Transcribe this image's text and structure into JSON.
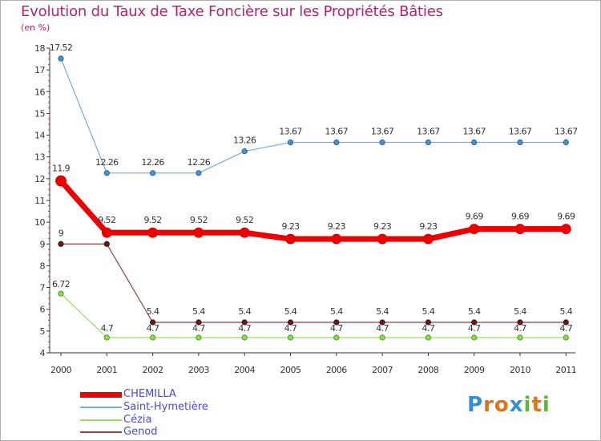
{
  "header": {
    "title": "Evolution du Taux de Taxe Foncière sur les Propriétés Bâties",
    "subtitle": "(en %)"
  },
  "chart_data": {
    "type": "line",
    "title": "Evolution du Taux de Taxe Foncière sur les Propriétés Bâties",
    "ylabel": "(en %)",
    "xlabel": "",
    "ylim": [
      4,
      18
    ],
    "yticks": [
      "4",
      "5",
      "6",
      "7",
      "8",
      "9",
      "10",
      "11",
      "12",
      "13",
      "14",
      "15",
      "16",
      "17",
      "18"
    ],
    "categories": [
      "2000",
      "2001",
      "2002",
      "2003",
      "2004",
      "2005",
      "2006",
      "2007",
      "2008",
      "2009",
      "2010",
      "2011"
    ],
    "series": [
      {
        "name": "CHEMILLA",
        "color": "#ee0000",
        "values": [
          11.9,
          9.52,
          9.52,
          9.52,
          9.52,
          9.23,
          9.23,
          9.23,
          9.23,
          9.69,
          9.69,
          9.69
        ],
        "labels": [
          "11.9",
          "9.52",
          "9.52",
          "9.52",
          "9.52",
          "9.23",
          "9.23",
          "9.23",
          "9.23",
          "9.69",
          "9.69",
          "9.69"
        ]
      },
      {
        "name": "Saint-Hymetière",
        "color": "#77aadd",
        "values": [
          17.52,
          12.26,
          12.26,
          12.26,
          13.26,
          13.67,
          13.67,
          13.67,
          13.67,
          13.67,
          13.67,
          13.67
        ],
        "labels": [
          "17.52",
          "12.26",
          "12.26",
          "12.26",
          "13.26",
          "13.67",
          "13.67",
          "13.67",
          "13.67",
          "13.67",
          "13.67",
          "13.67"
        ]
      },
      {
        "name": "Cézia",
        "color": "#99dd66",
        "values": [
          6.72,
          4.7,
          4.7,
          4.7,
          4.7,
          4.7,
          4.7,
          4.7,
          4.7,
          4.7,
          4.7,
          4.7
        ],
        "labels": [
          "6.72",
          "4.7",
          "4.7",
          "4.7",
          "4.7",
          "4.7",
          "4.7",
          "4.7",
          "4.7",
          "4.7",
          "4.7",
          "4.7"
        ]
      },
      {
        "name": "Genod",
        "color": "#884444",
        "values": [
          9,
          9,
          5.4,
          5.4,
          5.4,
          5.4,
          5.4,
          5.4,
          5.4,
          5.4,
          5.4,
          5.4
        ],
        "labels": [
          "9",
          "",
          "5.4",
          "5.4",
          "5.4",
          "5.4",
          "5.4",
          "5.4",
          "5.4",
          "5.4",
          "5.4",
          "5.4"
        ]
      }
    ],
    "legend": [
      {
        "name": "CHEMILLA",
        "text_color": "#4a4adb"
      },
      {
        "name": "Saint-Hymetière",
        "text_color": "#4a4adb"
      },
      {
        "name": "Cézia",
        "text_color": "#4a4adb"
      },
      {
        "name": "Genod",
        "text_color": "#4a4adb"
      }
    ],
    "legend_position": "bottom-left",
    "grid": false
  },
  "logo": {
    "text": "Proxiti",
    "letters": [
      {
        "ch": "P",
        "color": "#2f8fd0"
      },
      {
        "ch": "r",
        "color": "#e2731e"
      },
      {
        "ch": "o",
        "color": "#e2731e"
      },
      {
        "ch": "x",
        "color": "#2f8fd0"
      },
      {
        "ch": "i",
        "color": "#5cb82e"
      },
      {
        "ch": "t",
        "color": "#e2731e"
      },
      {
        "ch": "i",
        "color": "#5cb82e"
      }
    ]
  }
}
